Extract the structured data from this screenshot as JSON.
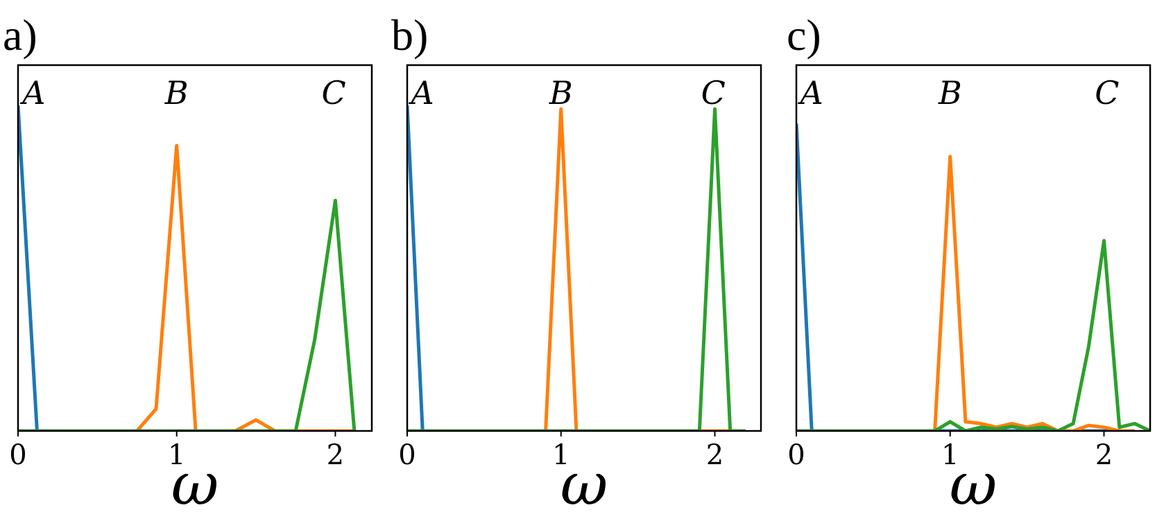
{
  "chart_data": [
    {
      "type": "line",
      "panel_label": "a)",
      "xlabel": "ω",
      "xlim": [
        0,
        2.23
      ],
      "ylim": [
        0,
        1.0
      ],
      "xticks": [
        "0",
        "1",
        "2"
      ],
      "peak_labels": [
        {
          "text": "A",
          "x": 0.1
        },
        {
          "text": "B",
          "x": 1.0
        },
        {
          "text": "C",
          "x": 1.99
        }
      ],
      "colors": [
        "#1f77b4",
        "#ff7f0e",
        "#2ca02c"
      ],
      "series": [
        {
          "color": "#1f77b4",
          "points": [
            [
              0,
              0.89
            ],
            [
              0.12,
              0.0
            ],
            [
              2.12,
              0.0
            ]
          ]
        },
        {
          "color": "#ff7f0e",
          "points": [
            [
              0,
              0.0
            ],
            [
              0.75,
              0.0
            ],
            [
              0.87,
              0.06
            ],
            [
              1.0,
              0.78
            ],
            [
              1.12,
              0.0
            ],
            [
              1.37,
              0.0
            ],
            [
              1.5,
              0.03
            ],
            [
              1.62,
              0.0
            ],
            [
              2.12,
              0.0
            ]
          ]
        },
        {
          "color": "#2ca02c",
          "points": [
            [
              0,
              0.0
            ],
            [
              1.75,
              0.0
            ],
            [
              1.87,
              0.25
            ],
            [
              2.0,
              0.63
            ],
            [
              2.12,
              0.0
            ]
          ]
        }
      ]
    },
    {
      "type": "line",
      "panel_label": "b)",
      "xlabel": "ω",
      "xlim": [
        0,
        2.3
      ],
      "ylim": [
        0,
        1.0
      ],
      "xticks": [
        "0",
        "1",
        "2"
      ],
      "peak_labels": [
        {
          "text": "A",
          "x": 0.1
        },
        {
          "text": "B",
          "x": 1.0
        },
        {
          "text": "C",
          "x": 1.99
        }
      ],
      "colors": [
        "#1f77b4",
        "#ff7f0e",
        "#2ca02c"
      ],
      "series": [
        {
          "color": "#1f77b4",
          "points": [
            [
              0,
              0.89
            ],
            [
              0.1,
              0.0
            ],
            [
              2.2,
              0.0
            ]
          ]
        },
        {
          "color": "#ff7f0e",
          "points": [
            [
              0,
              0.0
            ],
            [
              0.9,
              0.0
            ],
            [
              1.0,
              0.88
            ],
            [
              1.1,
              0.0
            ],
            [
              2.2,
              0.0
            ]
          ]
        },
        {
          "color": "#2ca02c",
          "points": [
            [
              0,
              0.0
            ],
            [
              1.9,
              0.0
            ],
            [
              2.0,
              0.88
            ],
            [
              2.1,
              0.0
            ],
            [
              2.2,
              0.0
            ]
          ]
        }
      ]
    },
    {
      "type": "line",
      "panel_label": "c)",
      "xlabel": "ω",
      "xlim": [
        0,
        2.3
      ],
      "ylim": [
        0,
        1.0
      ],
      "xticks": [
        "0",
        "1",
        "2"
      ],
      "peak_labels": [
        {
          "text": "A",
          "x": 0.1
        },
        {
          "text": "B",
          "x": 1.0
        },
        {
          "text": "C",
          "x": 2.02
        }
      ],
      "colors": [
        "#1f77b4",
        "#ff7f0e",
        "#2ca02c"
      ],
      "series": [
        {
          "color": "#1f77b4",
          "points": [
            [
              0,
              0.84
            ],
            [
              0.1,
              0.0
            ],
            [
              2.2,
              0.0
            ]
          ]
        },
        {
          "color": "#ff7f0e",
          "points": [
            [
              0,
              0.0
            ],
            [
              0.9,
              0.0
            ],
            [
              1.0,
              0.75
            ],
            [
              1.1,
              0.025
            ],
            [
              1.2,
              0.02
            ],
            [
              1.3,
              0.01
            ],
            [
              1.4,
              0.02
            ],
            [
              1.5,
              0.01
            ],
            [
              1.6,
              0.02
            ],
            [
              1.7,
              0.0
            ],
            [
              1.8,
              0.0
            ],
            [
              1.9,
              0.015
            ],
            [
              2.0,
              0.01
            ],
            [
              2.1,
              0.0
            ],
            [
              2.2,
              0.0
            ]
          ]
        },
        {
          "color": "#2ca02c",
          "points": [
            [
              0,
              0.0
            ],
            [
              0.9,
              0.0
            ],
            [
              1.0,
              0.025
            ],
            [
              1.1,
              0.0
            ],
            [
              1.2,
              0.01
            ],
            [
              1.3,
              0.005
            ],
            [
              1.4,
              0.012
            ],
            [
              1.5,
              0.005
            ],
            [
              1.6,
              0.01
            ],
            [
              1.7,
              0.0
            ],
            [
              1.8,
              0.02
            ],
            [
              1.9,
              0.23
            ],
            [
              2.0,
              0.52
            ],
            [
              2.1,
              0.01
            ],
            [
              2.2,
              0.02
            ],
            [
              2.3,
              0.0
            ]
          ]
        }
      ]
    }
  ]
}
